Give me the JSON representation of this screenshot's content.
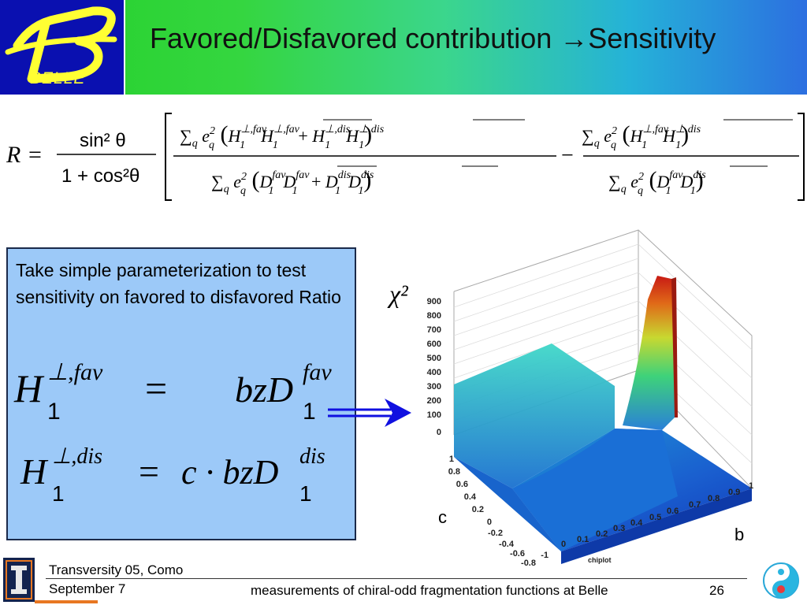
{
  "header": {
    "logo_text": "BELLE",
    "title": "Favored/Disfavored  contribution →Sensitivity"
  },
  "formula": {
    "lhs": "R",
    "prefix_numerator": "sin² θ",
    "prefix_denominator": "1 + cos²θ"
  },
  "textbox": {
    "text": "Take simple parameterization to test sensitivity on favored to disfavored Ratio"
  },
  "plot": {
    "z_label": "χ²",
    "z_ticks": [
      "900",
      "800",
      "700",
      "600",
      "500",
      "400",
      "300",
      "200",
      "100",
      "0"
    ],
    "c_ticks": [
      "1",
      "0.8",
      "0.6",
      "0.4",
      "0.2",
      "0",
      "-0.2",
      "-0.4",
      "-0.6",
      "-0.8",
      "-1"
    ],
    "b_ticks": [
      "0",
      "0.1",
      "0.2",
      "0.3",
      "0.4",
      "0.5",
      "0.6",
      "0.7",
      "0.8",
      "0.9",
      "1"
    ],
    "c_axis_label": "c",
    "b_axis_label": "b",
    "plot_name": "chiplot"
  },
  "footer": {
    "conference": "Transversity 05, Como",
    "date": "September 7",
    "talk_title": "measurements of chiral-odd fragmentation functions at Belle",
    "page_number": "26"
  },
  "colors": {
    "logo_bg": "#0a10b0",
    "logo_fg": "#ffff33",
    "textbox_bg": "#9cc9f8",
    "arrow": "#1010e0"
  }
}
